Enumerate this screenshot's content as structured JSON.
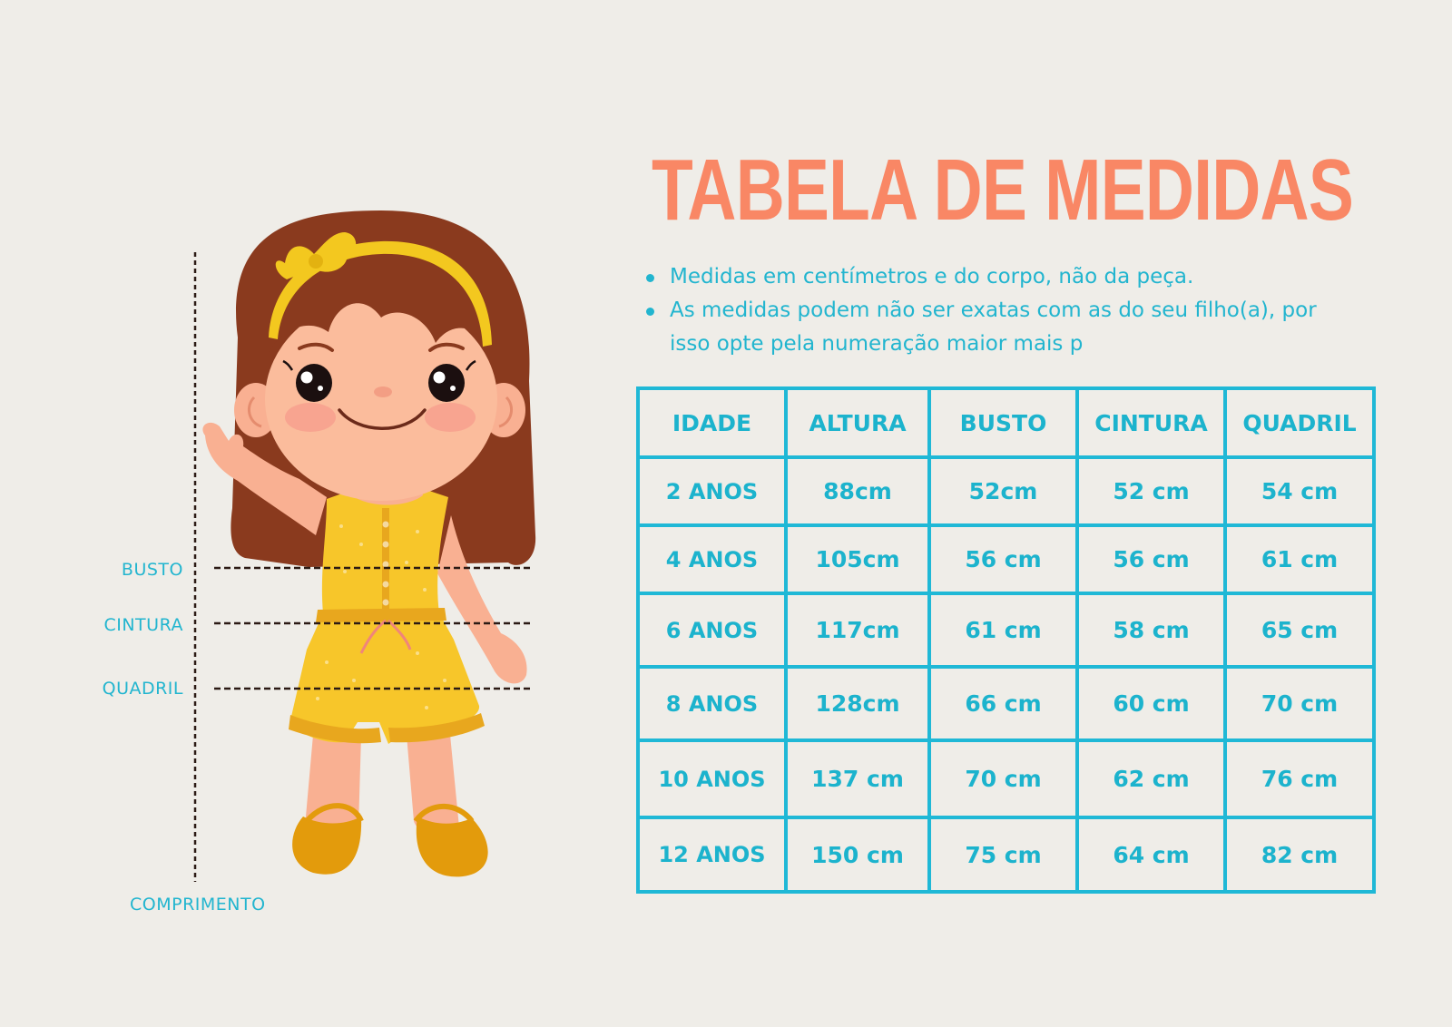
{
  "title": "TABELA DE MEDIDAS",
  "notes": [
    "Medidas em centímetros e do corpo, não da peça.",
    "As medidas podem não ser exatas com as do seu filho(a), por isso opte pela numeração maior mais p"
  ],
  "measure_labels": {
    "busto": "BUSTO",
    "cintura": "CINTURA",
    "quadril": "QUADRIL",
    "comprimento": "COMPRIMENTO"
  },
  "table": {
    "headers": [
      "IDADE",
      "ALTURA",
      "BUSTO",
      "CINTURA",
      "QUADRIL"
    ],
    "rows": [
      [
        "2 ANOS",
        "88cm",
        "52cm",
        "52 cm",
        "54 cm"
      ],
      [
        "4 ANOS",
        "105cm",
        "56 cm",
        "56 cm",
        "61 cm"
      ],
      [
        "6 ANOS",
        "117cm",
        "61 cm",
        "58 cm",
        "65 cm"
      ],
      [
        "8 ANOS",
        "128cm",
        "66 cm",
        "60 cm",
        "70 cm"
      ],
      [
        "10 ANOS",
        "137 cm",
        "70 cm",
        "62 cm",
        "76 cm"
      ],
      [
        "12 ANOS",
        "150 cm",
        "75 cm",
        "64 cm",
        "82 cm"
      ]
    ]
  },
  "colors": {
    "background": "#efede8",
    "title": "#f98765",
    "accent": "#1fb8d6"
  },
  "icons": {
    "illustration": "girl-in-yellow-romper-illustration"
  }
}
